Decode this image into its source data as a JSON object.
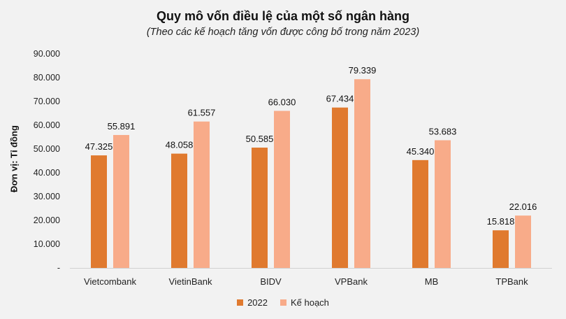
{
  "chart_data": {
    "type": "bar",
    "title": "Quy mô vốn điều lệ của một số ngân hàng",
    "subtitle": "(Theo các kế hoạch tăng vốn được công bố trong năm 2023)",
    "ylabel": "Đơn vị: Tỉ đồng",
    "xlabel": "",
    "categories": [
      "Vietcombank",
      "VietinBank",
      "BIDV",
      "VPBank",
      "MB",
      "TPBank"
    ],
    "series": [
      {
        "name": "2022",
        "values": [
          47325,
          48058,
          50585,
          67434,
          45340,
          15818
        ],
        "labels": [
          "47.325",
          "48.058",
          "50.585",
          "67.434",
          "45.340",
          "15.818"
        ],
        "color": "#e07a2f"
      },
      {
        "name": "Kế hoạch",
        "values": [
          55891,
          61557,
          66030,
          79339,
          53683,
          22016
        ],
        "labels": [
          "55.891",
          "61.557",
          "66.030",
          "79.339",
          "53.683",
          "22.016"
        ],
        "color": "#f8ab89"
      }
    ],
    "ylim": [
      0,
      90000
    ],
    "yticks": [
      0,
      10000,
      20000,
      30000,
      40000,
      50000,
      60000,
      70000,
      80000,
      90000
    ],
    "ytick_labels": [
      "-",
      "10.000",
      "20.000",
      "30.000",
      "40.000",
      "50.000",
      "60.000",
      "70.000",
      "80.000",
      "90.000"
    ],
    "grid": false,
    "legend_position": "bottom"
  }
}
